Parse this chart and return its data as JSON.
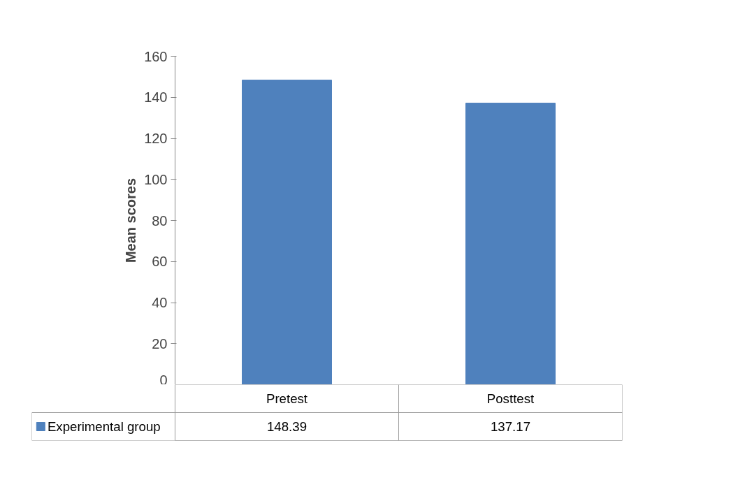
{
  "chart_data": {
    "type": "bar",
    "ylabel": "Mean scores",
    "categories": [
      "Pretest",
      "Posttest"
    ],
    "series": [
      {
        "name": "Experimental group",
        "color": "#4f81bd",
        "values": [
          148.39,
          137.17
        ]
      }
    ],
    "ylim": [
      0,
      160
    ],
    "yticks": [
      0,
      20,
      40,
      60,
      80,
      100,
      120,
      140,
      160
    ],
    "grid": false,
    "legend": "bottom",
    "data_labels": true
  }
}
